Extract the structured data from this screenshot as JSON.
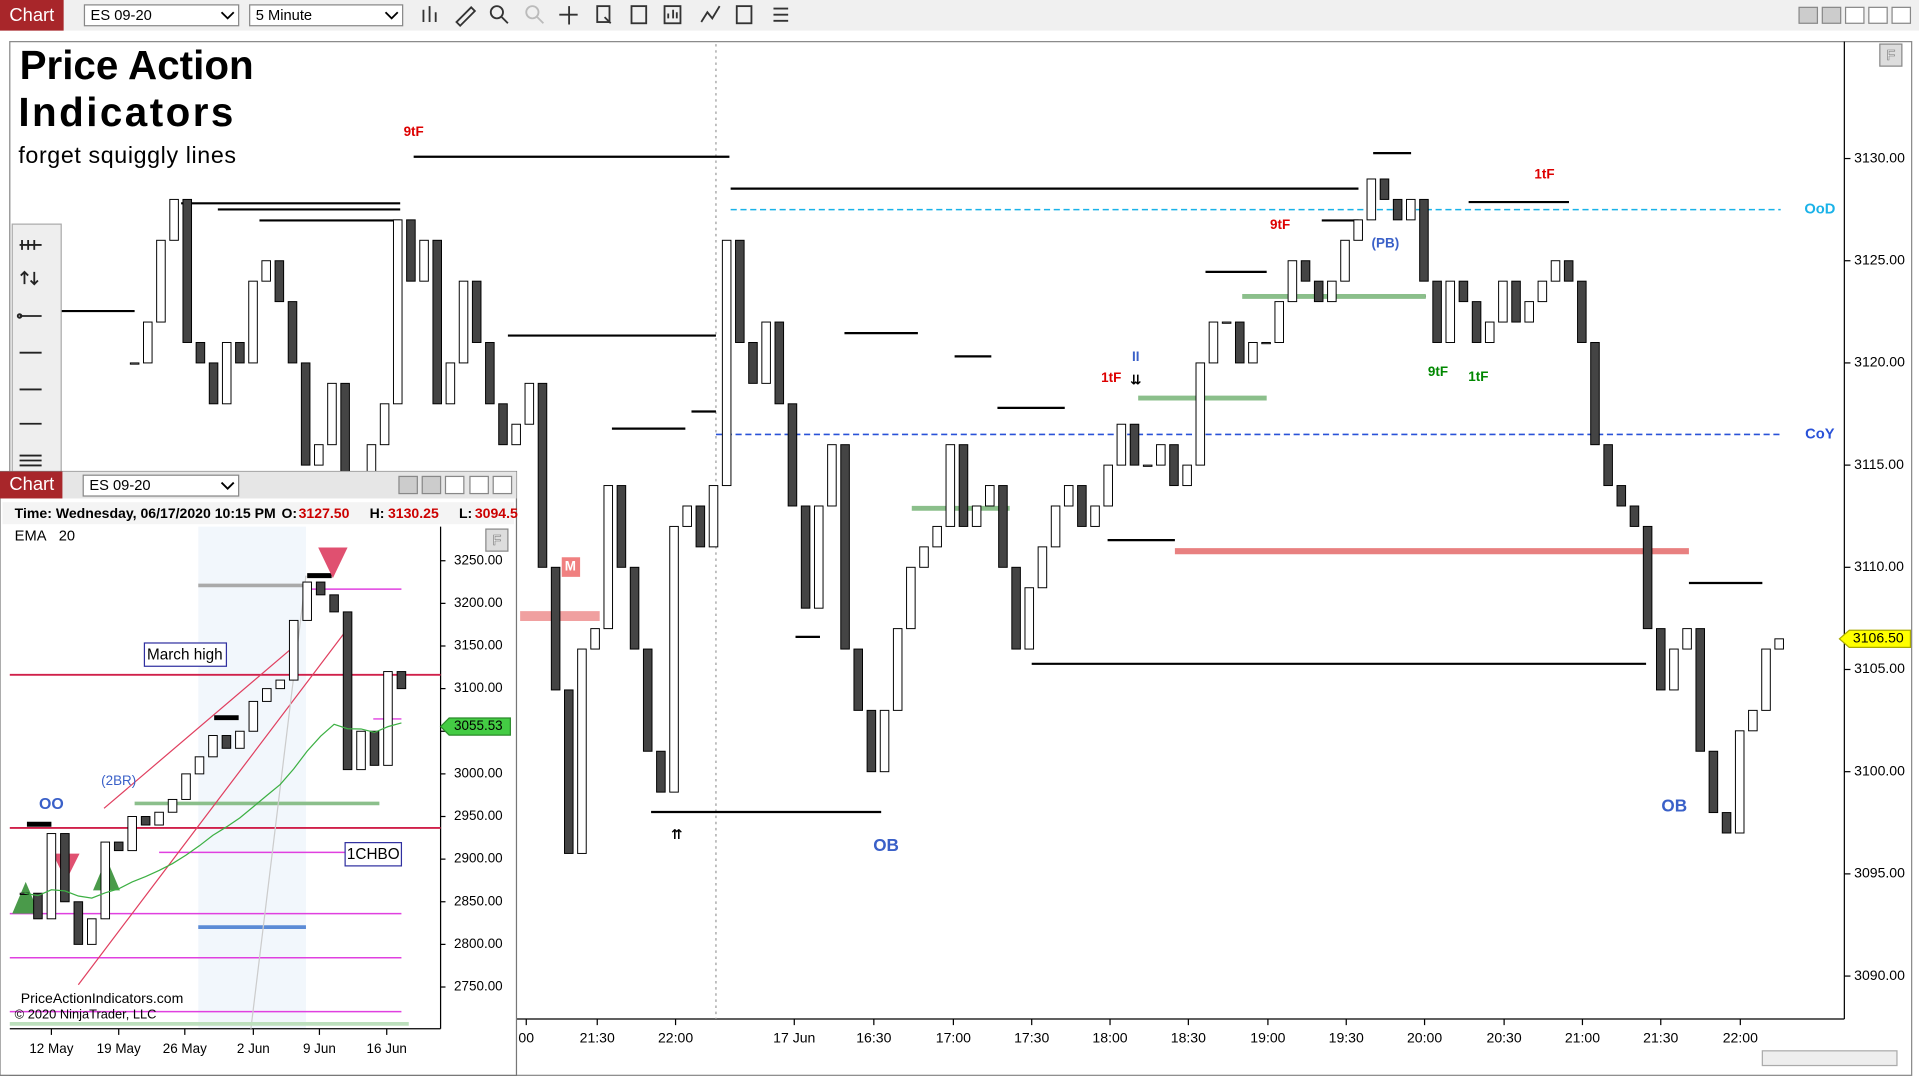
{
  "toolbar": {
    "tab": "Chart",
    "instrument": "ES 09-20",
    "interval": "5 Minute"
  },
  "branding": {
    "line1": "Price Action",
    "line2": "Indicators",
    "tagline": "forget squiggly lines"
  },
  "main_chart": {
    "ylim": [
      3087.9,
      3135.6
    ],
    "price_ticks": [
      {
        "value": 3130,
        "label": "3130.00"
      },
      {
        "value": 3125,
        "label": "3125.00"
      },
      {
        "value": 3120,
        "label": "3120.00"
      },
      {
        "value": 3115,
        "label": "3115.00"
      },
      {
        "value": 3110,
        "label": "3110.00"
      },
      {
        "value": 3105,
        "label": "3105.00"
      },
      {
        "value": 3100,
        "label": "3100.00"
      },
      {
        "value": 3095,
        "label": "3095.00"
      },
      {
        "value": 3090,
        "label": "3090.00"
      }
    ],
    "time_labels": [
      "00",
      "21:30",
      "22:00",
      "17 Jun",
      "16:30",
      "17:00",
      "17:30",
      "18:00",
      "18:30",
      "19:00",
      "19:30",
      "20:00",
      "20:30",
      "21:00",
      "21:30",
      "22:00"
    ],
    "closes": [
      3120,
      3122,
      3126,
      3128,
      3121,
      3120,
      3118,
      3121,
      3120,
      3124,
      3125,
      3123,
      3120,
      3115,
      3116,
      3119,
      3112,
      3113,
      3116,
      3118,
      3127,
      3124,
      3126,
      3118,
      3120,
      3124,
      3121,
      3118,
      3116,
      3117,
      3119,
      3110,
      3104,
      3096,
      3106,
      3107,
      3114,
      3110,
      3106,
      3101,
      3099,
      3112,
      3113,
      3111,
      3114,
      3126,
      3121,
      3119,
      3122,
      3118,
      3113,
      3108,
      3113,
      3116,
      3106,
      3103,
      3100,
      3103,
      3107,
      3110,
      3111,
      3112,
      3116,
      3112,
      3113,
      3114,
      3110,
      3106,
      3109,
      3111,
      3113,
      3114,
      3112,
      3113,
      3115,
      3117,
      3115,
      3115,
      3116,
      3114,
      3115,
      3120,
      3122,
      3122,
      3120,
      3121,
      3121,
      3123,
      3125,
      3124,
      3123,
      3124,
      3126,
      3127,
      3129,
      3128,
      3127,
      3128,
      3124,
      3121,
      3124,
      3123,
      3121,
      3122,
      3124,
      3122,
      3123,
      3124,
      3125,
      3124,
      3121,
      3116,
      3114,
      3113,
      3112,
      3107,
      3104,
      3106,
      3107,
      3101,
      3098,
      3097,
      3102,
      3103,
      3106,
      3106.5
    ],
    "last_price": {
      "value": 3106.5,
      "label": "3106.50"
    },
    "levels": [
      {
        "name": "OoD",
        "value": 3127.5,
        "color": "#1ab2e8"
      },
      {
        "name": "CoY",
        "value": 3116.5,
        "color": "#2a52d8"
      }
    ],
    "annotations": [
      "9tF",
      "9tF",
      "1tF",
      "1tF",
      "II",
      "⇊",
      "(PB)",
      "9tF",
      "1tF",
      "OB",
      "OB",
      "M",
      "⇈"
    ]
  },
  "inset": {
    "tab": "Chart",
    "instrument": "ES 09-20",
    "info": {
      "time": "Time: Wednesday, 06/17/2020 10:15 PM",
      "open_label": "O:",
      "open": "3127.50",
      "high_label": "H:",
      "high": "3130.25",
      "low_label": "L:",
      "low": "3094.5"
    },
    "indicator": "EMA",
    "period": 20,
    "ylim": [
      2701,
      3290
    ],
    "price_ticks": [
      {
        "value": 3250,
        "label": "3250.00"
      },
      {
        "value": 3200,
        "label": "3200.00"
      },
      {
        "value": 3150,
        "label": "3150.00"
      },
      {
        "value": 3100,
        "label": "3100.00"
      },
      {
        "value": 3050,
        "label": "3050.00"
      },
      {
        "value": 3000,
        "label": "3000.00"
      },
      {
        "value": 2950,
        "label": "2950.00"
      },
      {
        "value": 2900,
        "label": "2900.00"
      },
      {
        "value": 2850,
        "label": "2850.00"
      },
      {
        "value": 2800,
        "label": "2800.00"
      },
      {
        "value": 2750,
        "label": "2750.00"
      }
    ],
    "date_labels": [
      "12 May",
      "19 May",
      "26 May",
      "2 Jun",
      "9 Jun",
      "16 Jun"
    ],
    "closes": [
      2860,
      2830,
      2930,
      2850,
      2800,
      2830,
      2920,
      2910,
      2950,
      2940,
      2955,
      2970,
      3000,
      3020,
      3045,
      3030,
      3050,
      3085,
      3100,
      3110,
      3180,
      3225,
      3210,
      3190,
      3005,
      3050,
      3010,
      3120,
      3100
    ],
    "last_price": {
      "value": 3055.53,
      "label": "3055.53"
    },
    "notes": {
      "march_high": "March high",
      "two_br": "(2BR)",
      "oo": "OO",
      "chbo": "1CHBO"
    },
    "footer": {
      "site": "PriceActionIndicators.com",
      "copyright": "© 2020 NinjaTrader, LLC"
    }
  }
}
